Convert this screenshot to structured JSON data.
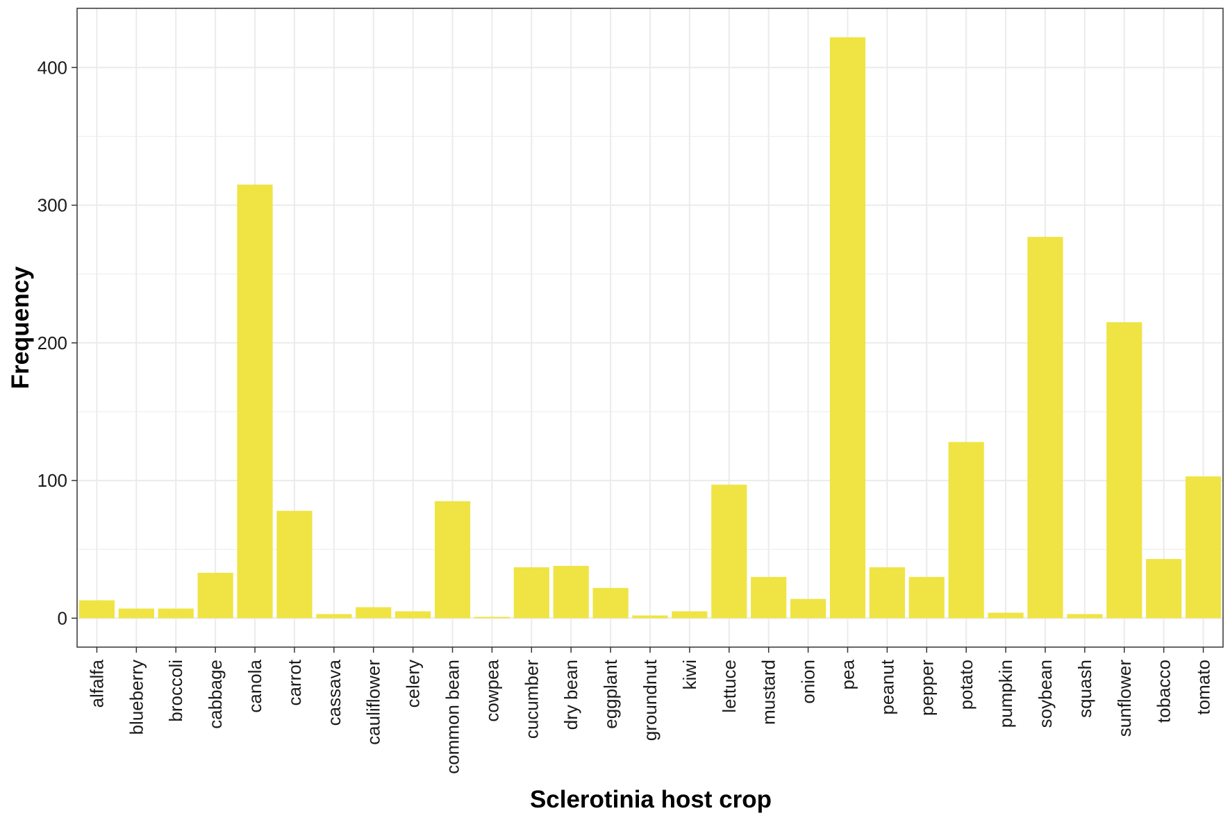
{
  "chart_data": {
    "type": "bar",
    "title": "",
    "xlabel": "Sclerotinia host crop",
    "ylabel": "Frequency",
    "categories": [
      "alfalfa",
      "blueberry",
      "broccoli",
      "cabbage",
      "canola",
      "carrot",
      "cassava",
      "cauliflower",
      "celery",
      "common bean",
      "cowpea",
      "cucumber",
      "dry bean",
      "eggplant",
      "groundnut",
      "kiwi",
      "lettuce",
      "mustard",
      "onion",
      "pea",
      "peanut",
      "pepper",
      "potato",
      "pumpkin",
      "soybean",
      "squash",
      "sunflower",
      "tobacco",
      "tomato"
    ],
    "values": [
      13,
      7,
      7,
      33,
      315,
      78,
      3,
      8,
      5,
      85,
      1,
      37,
      38,
      22,
      2,
      5,
      97,
      30,
      14,
      422,
      37,
      30,
      128,
      4,
      277,
      3,
      215,
      43,
      103
    ],
    "ylim": [
      -21,
      443
    ],
    "yticks": [
      0,
      100,
      200,
      300,
      400
    ],
    "grid": true,
    "legend": "none",
    "bar_color": "#efe444",
    "grid_color": "#ebebeb",
    "panel_border_color": "#333333"
  }
}
